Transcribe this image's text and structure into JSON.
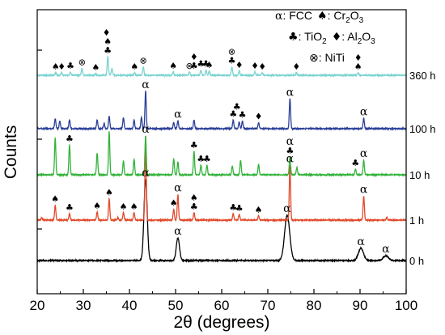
{
  "chart_data": {
    "type": "line",
    "xlabel": "2θ (degrees)",
    "ylabel": "Counts",
    "xlim": [
      20,
      100
    ],
    "xticks": [
      "20",
      "30",
      "40",
      "50",
      "60",
      "70",
      "80",
      "90",
      "100"
    ],
    "grid": false,
    "series": [
      {
        "name": "0 h",
        "color": "#000000",
        "peaks": [
          [
            43.5,
            100
          ],
          [
            50.5,
            28
          ],
          [
            74.2,
            56
          ],
          [
            90.2,
            15
          ],
          [
            95.6,
            6
          ]
        ]
      },
      {
        "name": "1 h",
        "color": "#e2492b",
        "peaks": [
          [
            21.0,
            3
          ],
          [
            23.9,
            18
          ],
          [
            27.0,
            8
          ],
          [
            33.0,
            10
          ],
          [
            35.6,
            26
          ],
          [
            37.5,
            3
          ],
          [
            38.7,
            9
          ],
          [
            41.0,
            9
          ],
          [
            43.5,
            100
          ],
          [
            49.6,
            13
          ],
          [
            50.5,
            31
          ],
          [
            54.0,
            9
          ],
          [
            62.5,
            8
          ],
          [
            63.8,
            7
          ],
          [
            68.0,
            5
          ],
          [
            74.8,
            66
          ],
          [
            90.8,
            29
          ],
          [
            95.8,
            3
          ]
        ]
      },
      {
        "name": "10 h",
        "color": "#33b33a",
        "peaks": [
          [
            23.9,
            46
          ],
          [
            27.0,
            37
          ],
          [
            33.0,
            27
          ],
          [
            35.6,
            54
          ],
          [
            38.7,
            17
          ],
          [
            41.0,
            19
          ],
          [
            43.5,
            48
          ],
          [
            49.6,
            20
          ],
          [
            50.5,
            16
          ],
          [
            54.0,
            29
          ],
          [
            55.5,
            12
          ],
          [
            56.8,
            12
          ],
          [
            62.3,
            11
          ],
          [
            64.1,
            18
          ],
          [
            68.0,
            13
          ],
          [
            74.8,
            22
          ],
          [
            76.3,
            9
          ],
          [
            89.0,
            7
          ],
          [
            90.8,
            18
          ]
        ]
      },
      {
        "name": "100 h",
        "color": "#2b3f99",
        "peaks": [
          [
            23.9,
            12
          ],
          [
            24.9,
            9
          ],
          [
            27.0,
            10
          ],
          [
            33.0,
            10
          ],
          [
            34.5,
            6
          ],
          [
            35.6,
            15
          ],
          [
            38.7,
            13
          ],
          [
            41.0,
            10
          ],
          [
            42.6,
            13
          ],
          [
            43.5,
            44
          ],
          [
            49.6,
            7
          ],
          [
            50.5,
            9
          ],
          [
            54.0,
            10
          ],
          [
            62.5,
            10
          ],
          [
            63.8,
            8
          ],
          [
            64.5,
            9
          ],
          [
            68.0,
            7
          ],
          [
            74.8,
            35
          ],
          [
            90.8,
            12
          ]
        ]
      },
      {
        "name": "360 h",
        "color": "#7bd4d0",
        "peaks": [
          [
            24.0,
            3
          ],
          [
            25.3,
            3
          ],
          [
            27.2,
            4
          ],
          [
            29.7,
            8
          ],
          [
            32.7,
            2
          ],
          [
            35.3,
            22
          ],
          [
            36.2,
            8
          ],
          [
            41.1,
            3
          ],
          [
            43.0,
            10
          ],
          [
            49.5,
            4
          ],
          [
            53.0,
            4
          ],
          [
            55.5,
            6
          ],
          [
            56.6,
            6
          ],
          [
            57.3,
            5
          ],
          [
            62.2,
            10
          ],
          [
            63.8,
            5
          ],
          [
            67.2,
            4
          ],
          [
            68.8,
            3
          ],
          [
            76.2,
            3
          ],
          [
            89.6,
            3
          ]
        ]
      }
    ],
    "annotations": [
      {
        "sym": "α",
        "x": 43.5,
        "series": 0
      },
      {
        "sym": "α",
        "x": 50.5,
        "series": 0
      },
      {
        "sym": "α",
        "x": 74.2,
        "series": 0
      },
      {
        "sym": "α",
        "x": 90.2,
        "series": 0
      },
      {
        "sym": "α",
        "x": 95.6,
        "series": 0
      },
      {
        "sym": "♠",
        "x": 23.9,
        "series": 1
      },
      {
        "sym": "♣",
        "x": 27.0,
        "series": 1
      },
      {
        "sym": "♠",
        "x": 33.0,
        "series": 1
      },
      {
        "sym": "♠",
        "x": 35.6,
        "series": 1
      },
      {
        "sym": "♠",
        "x": 38.7,
        "series": 1
      },
      {
        "sym": "♠",
        "x": 41.0,
        "series": 1
      },
      {
        "sym": "♠",
        "x": 49.6,
        "series": 1
      },
      {
        "sym": "α",
        "x": 50.5,
        "series": 1
      },
      {
        "sym": "♣",
        "x": 54.0,
        "series": 1
      },
      {
        "sym": "♠",
        "x": 54.0,
        "series": 1,
        "stack": 1
      },
      {
        "sym": "♣",
        "x": 62.5,
        "series": 1
      },
      {
        "sym": "♣",
        "x": 63.8,
        "series": 1
      },
      {
        "sym": "♠",
        "x": 68.0,
        "series": 1
      },
      {
        "sym": "α",
        "x": 74.8,
        "series": 1
      },
      {
        "sym": "α",
        "x": 90.8,
        "series": 1
      },
      {
        "sym": "♣",
        "x": 27.0,
        "series": 2
      },
      {
        "sym": "α",
        "x": 43.5,
        "series": 2
      },
      {
        "sym": "♣",
        "x": 54.0,
        "series": 2
      },
      {
        "sym": "♣",
        "x": 55.5,
        "series": 2
      },
      {
        "sym": "♣",
        "x": 56.8,
        "series": 2
      },
      {
        "sym": "♣",
        "x": 74.8,
        "series": 2
      },
      {
        "sym": "α",
        "x": 74.8,
        "series": 2,
        "stack": 1
      },
      {
        "sym": "♣",
        "x": 89.0,
        "series": 2
      },
      {
        "sym": "α",
        "x": 90.8,
        "series": 2
      },
      {
        "sym": "α",
        "x": 43.5,
        "series": 3
      },
      {
        "sym": "α",
        "x": 50.5,
        "series": 3
      },
      {
        "sym": "♣",
        "x": 62.5,
        "series": 3
      },
      {
        "sym": "♣",
        "x": 64.5,
        "series": 3
      },
      {
        "sym": "♣",
        "x": 63.3,
        "series": 3,
        "stack": 1
      },
      {
        "sym": "♦",
        "x": 68.0,
        "series": 3
      },
      {
        "sym": "α",
        "x": 74.8,
        "series": 3
      },
      {
        "sym": "α",
        "x": 90.8,
        "series": 3
      },
      {
        "sym": "♠",
        "x": 24.0,
        "series": 4
      },
      {
        "sym": "♦",
        "x": 25.3,
        "series": 4
      },
      {
        "sym": "♣",
        "x": 27.2,
        "series": 4
      },
      {
        "sym": "⊗",
        "x": 29.7,
        "series": 4
      },
      {
        "sym": "♠",
        "x": 32.7,
        "series": 4
      },
      {
        "sym": "♣",
        "x": 35.3,
        "series": 4
      },
      {
        "sym": "♠",
        "x": 35.3,
        "series": 4,
        "stack": 1
      },
      {
        "sym": "♦",
        "x": 35.0,
        "series": 4,
        "stack": 2
      },
      {
        "sym": "♠",
        "x": 41.1,
        "series": 4
      },
      {
        "sym": "⊗",
        "x": 43.0,
        "series": 4
      },
      {
        "sym": "♠",
        "x": 49.5,
        "series": 4
      },
      {
        "sym": "⊗",
        "x": 53.0,
        "series": 4
      },
      {
        "sym": "♣",
        "x": 54.0,
        "series": 4
      },
      {
        "sym": "♦",
        "x": 54.0,
        "series": 4,
        "stack": 1
      },
      {
        "sym": "♣",
        "x": 55.5,
        "series": 4
      },
      {
        "sym": "♣",
        "x": 56.6,
        "series": 4
      },
      {
        "sym": "♠",
        "x": 57.3,
        "series": 4
      },
      {
        "sym": "♣",
        "x": 62.2,
        "series": 4
      },
      {
        "sym": "⊗",
        "x": 62.2,
        "series": 4,
        "stack": 1
      },
      {
        "sym": "♦",
        "x": 63.8,
        "series": 4
      },
      {
        "sym": "♦",
        "x": 67.2,
        "series": 4
      },
      {
        "sym": "♦",
        "x": 68.8,
        "series": 4
      },
      {
        "sym": "♦",
        "x": 76.2,
        "series": 4
      },
      {
        "sym": "♠",
        "x": 89.6,
        "series": 4
      },
      {
        "sym": "♦",
        "x": 89.6,
        "series": 4,
        "stack": 1
      }
    ],
    "legend": {
      "placement": "top-right",
      "row1": {
        "sym1": "α",
        "text1": ": FCC",
        "sym2": "♠",
        "text2": ": Cr",
        "sub2": "2",
        "text2b": "O",
        "sub2b": "3"
      },
      "row2": {
        "sym1": "♣",
        "text1": ": TiO",
        "sub1": "2",
        "sym2": "♦",
        "text2": ": Al",
        "sub2": "2",
        "text2b": "O",
        "sub2b": "3"
      },
      "row3": {
        "sym1": "⊗",
        "text1": ": NiTi"
      }
    }
  }
}
